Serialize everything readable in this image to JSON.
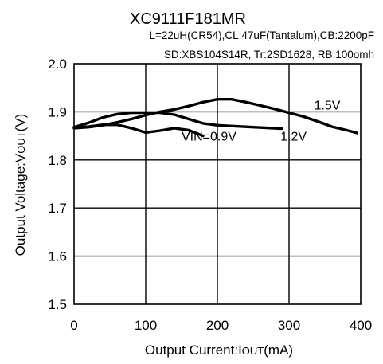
{
  "chart_data": {
    "type": "line",
    "title": "XC9111F181MR",
    "subtitle_lines": [
      "L=22uH(CR54),CL:47uF(Tantalum),CB:2200pF",
      "SD:XBS104S14R, Tr:2SD1628, RB:100omh"
    ],
    "xlabel_parts": [
      "Output Current:I",
      "OUT",
      "(mA)"
    ],
    "ylabel_parts": [
      "Output Voltage:V",
      "OUT",
      "(V)"
    ],
    "xlim": [
      0,
      400
    ],
    "ylim": [
      1.5,
      2.0
    ],
    "x_ticks": [
      0,
      100,
      200,
      300,
      400
    ],
    "x_tick_labels": [
      "0",
      "100",
      "200",
      "300",
      "400"
    ],
    "y_ticks": [
      1.5,
      1.6,
      1.7,
      1.8,
      1.9,
      2.0
    ],
    "y_tick_labels": [
      "1.5",
      "1.6",
      "1.7",
      "1.8",
      "1.9",
      "2.0"
    ],
    "grid": true,
    "legend": "none",
    "series": [
      {
        "name": "VIN=0.9V",
        "x": [
          0,
          20,
          40,
          60,
          80,
          100,
          120,
          140,
          160,
          180
        ],
        "y": [
          1.868,
          1.869,
          1.873,
          1.873,
          1.866,
          1.857,
          1.861,
          1.866,
          1.862,
          1.85
        ]
      },
      {
        "name": "1.2V",
        "x": [
          0,
          20,
          40,
          60,
          80,
          100,
          120,
          140,
          160,
          180,
          200,
          250,
          290
        ],
        "y": [
          1.868,
          1.877,
          1.888,
          1.895,
          1.898,
          1.898,
          1.898,
          1.894,
          1.885,
          1.876,
          1.872,
          1.868,
          1.865
        ]
      },
      {
        "name": "1.5V",
        "x": [
          0,
          20,
          40,
          60,
          80,
          100,
          120,
          140,
          160,
          180,
          200,
          220,
          240,
          260,
          280,
          300,
          320,
          340,
          360,
          380,
          395
        ],
        "y": [
          1.866,
          1.868,
          1.872,
          1.878,
          1.885,
          1.893,
          1.9,
          1.905,
          1.912,
          1.92,
          1.926,
          1.926,
          1.92,
          1.913,
          1.906,
          1.898,
          1.89,
          1.88,
          1.869,
          1.862,
          1.856
        ]
      }
    ],
    "annotations": [
      {
        "text": "1.5V",
        "x": 335,
        "y": 1.905
      },
      {
        "text": "1.2V",
        "x": 288,
        "y": 1.84
      },
      {
        "text": "VIN=0.9V",
        "x": 150,
        "y": 1.84
      }
    ]
  }
}
